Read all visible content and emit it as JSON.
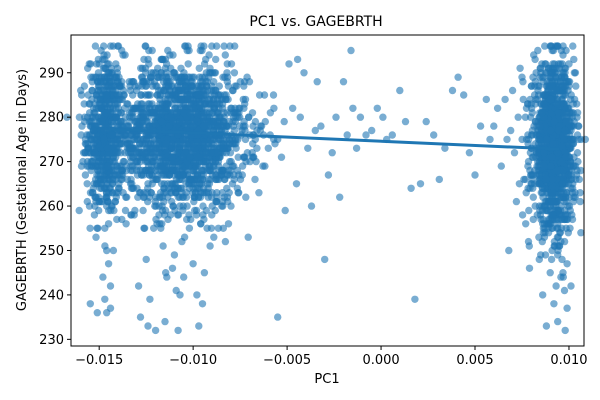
{
  "chart_data": {
    "type": "scatter",
    "title": "PC1 vs. GAGEBRTH",
    "xlabel": "PC1",
    "ylabel": "GAGEBRTH (Gestational Age in Days)",
    "xlim": [
      -0.0165,
      0.0108
    ],
    "ylim": [
      228.5,
      298.5
    ],
    "x_ticks": [
      -0.015,
      -0.01,
      -0.005,
      0.0,
      0.005,
      0.01
    ],
    "x_tick_labels": [
      "−0.015",
      "−0.010",
      "−0.005",
      "0.000",
      "0.005",
      "0.010"
    ],
    "y_ticks": [
      230,
      240,
      250,
      260,
      270,
      280,
      290
    ],
    "y_tick_labels": [
      "230",
      "240",
      "250",
      "260",
      "270",
      "280",
      "290"
    ],
    "grid": false,
    "legend": "none",
    "colors": {
      "points": "#1f77b4",
      "line": "#1f77b4"
    },
    "point_alpha": 0.6,
    "trend_line": {
      "x": [
        -0.0145,
        0.0095
      ],
      "y": [
        277.3,
        272.8
      ]
    },
    "points": [
      [
        -0.0158,
        283
      ],
      [
        -0.0152,
        296
      ],
      [
        -0.0151,
        236
      ],
      [
        -0.015,
        292
      ],
      [
        -0.0149,
        288
      ],
      [
        -0.0148,
        244
      ],
      [
        -0.0147,
        239
      ],
      [
        -0.0146,
        236
      ],
      [
        -0.0147,
        255
      ],
      [
        -0.0146,
        250
      ],
      [
        -0.0145,
        247
      ],
      [
        -0.0144,
        242
      ],
      [
        -0.0144,
        237
      ],
      [
        -0.015,
        276
      ],
      [
        -0.0149,
        282
      ],
      [
        -0.0148,
        270
      ],
      [
        -0.0147,
        264
      ],
      [
        -0.015,
        261
      ],
      [
        -0.0148,
        279
      ],
      [
        -0.0146,
        285
      ],
      [
        -0.0145,
        268
      ],
      [
        -0.0146,
        260
      ],
      [
        -0.0144,
        273
      ],
      [
        -0.0143,
        290
      ],
      [
        -0.0147,
        293
      ],
      [
        -0.0149,
        266
      ],
      [
        -0.0145,
        256
      ],
      [
        -0.0142,
        280
      ],
      [
        -0.0141,
        286
      ],
      [
        -0.014,
        272
      ],
      [
        -0.0138,
        295
      ],
      [
        -0.0135,
        266
      ],
      [
        -0.0134,
        288
      ],
      [
        -0.0132,
        281
      ],
      [
        -0.013,
        276
      ],
      [
        -0.0131,
        259
      ],
      [
        -0.0129,
        242
      ],
      [
        -0.0128,
        235
      ],
      [
        -0.0127,
        289
      ],
      [
        -0.0126,
        262
      ],
      [
        -0.0125,
        248
      ],
      [
        -0.0124,
        233
      ],
      [
        -0.0123,
        239
      ],
      [
        -0.0122,
        270
      ],
      [
        -0.0121,
        255
      ],
      [
        -0.012,
        232
      ],
      [
        -0.0119,
        279
      ],
      [
        -0.0118,
        262
      ],
      [
        -0.0117,
        293
      ],
      [
        -0.0116,
        251
      ],
      [
        -0.0115,
        234
      ],
      [
        -0.0114,
        244
      ],
      [
        -0.0113,
        287
      ],
      [
        -0.0112,
        258
      ],
      [
        -0.0111,
        246
      ],
      [
        -0.011,
        249
      ],
      [
        -0.0109,
        241
      ],
      [
        -0.0108,
        232
      ],
      [
        -0.0107,
        240
      ],
      [
        -0.0106,
        252
      ],
      [
        -0.0105,
        244
      ],
      [
        -0.0104,
        296
      ],
      [
        -0.0103,
        281
      ],
      [
        -0.0102,
        255
      ],
      [
        -0.0101,
        266
      ],
      [
        -0.01,
        247
      ],
      [
        -0.0099,
        262
      ],
      [
        -0.0098,
        240
      ],
      [
        -0.0097,
        233
      ],
      [
        -0.0096,
        256
      ],
      [
        -0.0095,
        238
      ],
      [
        -0.0094,
        245
      ],
      [
        -0.0093,
        259
      ],
      [
        -0.0092,
        264
      ],
      [
        -0.0091,
        251
      ],
      [
        -0.009,
        287
      ],
      [
        -0.0089,
        253
      ],
      [
        -0.0088,
        293
      ],
      [
        -0.0087,
        266
      ],
      [
        -0.0086,
        279
      ],
      [
        -0.0085,
        284
      ],
      [
        -0.0084,
        274
      ],
      [
        -0.0082,
        290
      ],
      [
        -0.008,
        268
      ],
      [
        -0.0078,
        281
      ],
      [
        -0.0076,
        263
      ],
      [
        -0.0074,
        277
      ],
      [
        -0.0072,
        262
      ],
      [
        -0.007,
        288
      ],
      [
        -0.0068,
        271
      ],
      [
        -0.0066,
        277
      ],
      [
        -0.0065,
        263
      ],
      [
        -0.0062,
        285
      ],
      [
        -0.006,
        273
      ],
      [
        -0.0059,
        276
      ],
      [
        -0.0057,
        282
      ],
      [
        -0.0055,
        235
      ],
      [
        -0.0053,
        271
      ],
      [
        -0.0051,
        259
      ],
      [
        -0.0049,
        292
      ],
      [
        -0.0047,
        282
      ],
      [
        -0.0045,
        265
      ],
      [
        -0.0043,
        280
      ],
      [
        -0.0041,
        290
      ],
      [
        -0.0039,
        273
      ],
      [
        -0.0037,
        260
      ],
      [
        -0.0035,
        277
      ],
      [
        -0.0034,
        288
      ],
      [
        -0.0032,
        278
      ],
      [
        -0.003,
        248
      ],
      [
        -0.0028,
        267
      ],
      [
        -0.0026,
        272
      ],
      [
        -0.0024,
        280
      ],
      [
        -0.0022,
        262
      ],
      [
        -0.002,
        288
      ],
      [
        -0.0018,
        276
      ],
      [
        -0.0016,
        295
      ],
      [
        -0.0015,
        282
      ],
      [
        -0.0013,
        273
      ],
      [
        -0.0011,
        280
      ],
      [
        -0.0008,
        276
      ],
      [
        -0.0005,
        277
      ],
      [
        -0.0002,
        282
      ],
      [
        0.0001,
        280
      ],
      [
        0.0003,
        275
      ],
      [
        0.0006,
        276
      ],
      [
        0.001,
        286
      ],
      [
        0.0013,
        279
      ],
      [
        0.0016,
        264
      ],
      [
        0.0018,
        239
      ],
      [
        0.0021,
        265
      ],
      [
        0.0024,
        279
      ],
      [
        0.0028,
        276
      ],
      [
        0.0031,
        266
      ],
      [
        0.0034,
        273
      ],
      [
        0.0038,
        286
      ],
      [
        0.0041,
        289
      ],
      [
        0.0044,
        285
      ],
      [
        0.0047,
        272
      ],
      [
        0.005,
        267
      ],
      [
        0.0053,
        278
      ],
      [
        0.0056,
        284
      ],
      [
        0.0058,
        275
      ],
      [
        0.006,
        278
      ],
      [
        0.0062,
        282
      ],
      [
        0.0064,
        269
      ],
      [
        0.0066,
        284
      ],
      [
        0.0067,
        275
      ],
      [
        0.0068,
        250
      ],
      [
        0.0069,
        277
      ],
      [
        0.007,
        286
      ],
      [
        0.0071,
        272
      ],
      [
        0.0072,
        261
      ],
      [
        0.0073,
        280
      ],
      [
        0.0074,
        291
      ],
      [
        0.0075,
        289
      ],
      [
        0.0076,
        266
      ],
      [
        0.0077,
        256
      ],
      [
        0.0078,
        283
      ],
      [
        0.0079,
        246
      ],
      [
        0.008,
        287
      ],
      [
        0.0081,
        262
      ],
      [
        0.0082,
        293
      ],
      [
        0.0083,
        278
      ],
      [
        0.0084,
        253
      ],
      [
        0.0085,
        290
      ],
      [
        0.0086,
        240
      ],
      [
        0.0087,
        270
      ],
      [
        0.0088,
        233
      ],
      [
        0.0089,
        284
      ],
      [
        0.009,
        296
      ],
      [
        0.0091,
        262
      ],
      [
        0.0092,
        238
      ],
      [
        0.0093,
        275
      ],
      [
        0.0094,
        234
      ],
      [
        0.0095,
        251
      ],
      [
        0.0096,
        287
      ],
      [
        0.0097,
        244
      ],
      [
        0.0098,
        232
      ],
      [
        0.0099,
        237
      ],
      [
        0.01,
        292
      ],
      [
        0.0099,
        247
      ],
      [
        0.0098,
        268
      ],
      [
        0.0096,
        270
      ],
      [
        0.0093,
        281
      ],
      [
        0.0091,
        250
      ]
    ],
    "dense_clusters": [
      {
        "x_center": -0.0147,
        "x_spread": 0.0005,
        "y_center": 276,
        "y_spread": 9,
        "count": 550
      },
      {
        "x_center": -0.0106,
        "x_spread": 0.0017,
        "y_center": 276,
        "y_spread": 8,
        "count": 1800
      },
      {
        "x_center": 0.0092,
        "x_spread": 0.00055,
        "y_center": 273,
        "y_spread": 9,
        "count": 1300
      }
    ]
  }
}
